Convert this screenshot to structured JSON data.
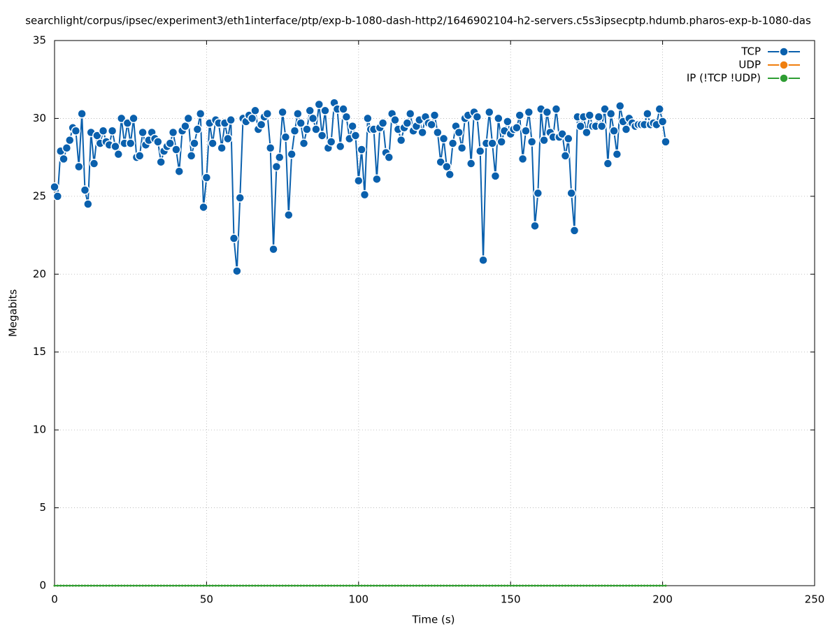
{
  "chart_data": {
    "type": "line",
    "title": "searchlight/corpus/ipsec/experiment3/eth1interface/ptp/exp-b-1080-dash-http2/1646902104-h2-servers.c5s3ipsecptp.hdumb.pharos-exp-b-1080-das",
    "x_label": "Time (s)",
    "y_label": "Megabits",
    "xlim": [
      0,
      250
    ],
    "xticks": [
      0,
      50,
      100,
      150,
      200,
      250
    ],
    "ylim": [
      0,
      35
    ],
    "yticks": [
      0,
      5,
      10,
      15,
      20,
      25,
      30,
      35
    ],
    "grid": true,
    "legend": "top-right",
    "x": [
      0,
      1,
      2,
      3,
      4,
      5,
      6,
      7,
      8,
      9,
      10,
      11,
      12,
      13,
      14,
      15,
      16,
      17,
      18,
      19,
      20,
      21,
      22,
      23,
      24,
      25,
      26,
      27,
      28,
      29,
      30,
      31,
      32,
      33,
      34,
      35,
      36,
      37,
      38,
      39,
      40,
      41,
      42,
      43,
      44,
      45,
      46,
      47,
      48,
      49,
      50,
      51,
      52,
      53,
      54,
      55,
      56,
      57,
      58,
      59,
      60,
      61,
      62,
      63,
      64,
      65,
      66,
      67,
      68,
      69,
      70,
      71,
      72,
      73,
      74,
      75,
      76,
      77,
      78,
      79,
      80,
      81,
      82,
      83,
      84,
      85,
      86,
      87,
      88,
      89,
      90,
      91,
      92,
      93,
      94,
      95,
      96,
      97,
      98,
      99,
      100,
      101,
      102,
      103,
      104,
      105,
      106,
      107,
      108,
      109,
      110,
      111,
      112,
      113,
      114,
      115,
      116,
      117,
      118,
      119,
      120,
      121,
      122,
      123,
      124,
      125,
      126,
      127,
      128,
      129,
      130,
      131,
      132,
      133,
      134,
      135,
      136,
      137,
      138,
      139,
      140,
      141,
      142,
      143,
      144,
      145,
      146,
      147,
      148,
      149,
      150,
      151,
      152,
      153,
      154,
      155,
      156,
      157,
      158,
      159,
      160,
      161,
      162,
      163,
      164,
      165,
      166,
      167,
      168,
      169,
      170,
      171,
      172,
      173,
      174,
      175,
      176,
      177,
      178,
      179,
      180,
      181,
      182,
      183,
      184,
      185,
      186,
      187,
      188,
      189,
      190,
      191,
      192,
      193,
      194,
      195,
      196,
      197,
      198,
      199,
      200,
      201
    ],
    "series": [
      {
        "name": "TCP",
        "color": "#0a60ad",
        "values": [
          25.6,
          25.0,
          27.9,
          27.4,
          28.1,
          28.6,
          29.4,
          29.2,
          26.9,
          30.3,
          25.4,
          24.5,
          29.1,
          27.1,
          28.9,
          28.4,
          29.2,
          28.5,
          28.3,
          29.2,
          28.2,
          27.7,
          30.0,
          28.4,
          29.7,
          28.4,
          30.0,
          27.5,
          27.6,
          29.1,
          28.3,
          28.6,
          29.1,
          28.7,
          28.5,
          27.2,
          27.9,
          28.2,
          28.4,
          29.1,
          28.0,
          26.6,
          29.2,
          29.5,
          30.0,
          27.6,
          28.4,
          29.3,
          30.3,
          24.3,
          26.2,
          29.7,
          28.4,
          29.9,
          29.7,
          28.1,
          29.7,
          28.7,
          29.9,
          22.3,
          20.2,
          24.9,
          30.0,
          29.8,
          30.2,
          30.0,
          30.5,
          29.3,
          29.6,
          30.1,
          30.3,
          28.1,
          21.6,
          26.9,
          27.5,
          30.4,
          28.8,
          23.8,
          27.7,
          29.2,
          30.3,
          29.7,
          28.4,
          29.3,
          30.5,
          30.0,
          29.3,
          30.9,
          28.9,
          30.5,
          28.1,
          28.5,
          31.0,
          30.6,
          28.2,
          30.6,
          30.1,
          28.7,
          29.5,
          28.9,
          26.0,
          28.0,
          25.1,
          30.0,
          29.3,
          29.3,
          26.1,
          29.4,
          29.7,
          27.8,
          27.5,
          30.3,
          29.9,
          29.3,
          28.6,
          29.4,
          29.7,
          30.3,
          29.2,
          29.5,
          29.9,
          29.1,
          30.1,
          29.7,
          29.6,
          30.2,
          29.1,
          27.2,
          28.7,
          26.9,
          26.4,
          28.4,
          29.5,
          29.1,
          28.1,
          30.0,
          30.2,
          27.1,
          30.4,
          30.1,
          27.9,
          20.9,
          28.4,
          30.4,
          28.4,
          26.3,
          30.0,
          28.5,
          29.2,
          29.8,
          29.0,
          29.3,
          29.4,
          30.2,
          27.4,
          29.2,
          30.4,
          28.5,
          23.1,
          25.2,
          30.6,
          28.6,
          30.4,
          29.1,
          28.8,
          30.6,
          28.8,
          29.0,
          27.6,
          28.7,
          25.2,
          22.8,
          30.1,
          29.5,
          30.1,
          29.1,
          30.2,
          29.5,
          29.5,
          30.1,
          29.5,
          30.6,
          27.1,
          30.3,
          29.2,
          27.7,
          30.8,
          29.8,
          29.3,
          30.0,
          29.7,
          29.5,
          29.6,
          29.6,
          29.6,
          30.3,
          29.6,
          29.7,
          29.6,
          30.6,
          29.8,
          28.5
        ]
      },
      {
        "name": "UDP",
        "color": "#f07f0e",
        "values": [
          0,
          0,
          0,
          0,
          0,
          0,
          0,
          0,
          0,
          0,
          0,
          0,
          0,
          0,
          0,
          0,
          0,
          0,
          0,
          0,
          0,
          0,
          0,
          0,
          0,
          0,
          0,
          0,
          0,
          0,
          0,
          0,
          0,
          0,
          0,
          0,
          0,
          0,
          0,
          0,
          0,
          0,
          0,
          0,
          0,
          0,
          0,
          0,
          0,
          0,
          0,
          0,
          0,
          0,
          0,
          0,
          0,
          0,
          0,
          0,
          0,
          0,
          0,
          0,
          0,
          0,
          0,
          0,
          0,
          0,
          0,
          0,
          0,
          0,
          0,
          0,
          0,
          0,
          0,
          0,
          0,
          0,
          0,
          0,
          0,
          0,
          0,
          0,
          0,
          0,
          0,
          0,
          0,
          0,
          0,
          0,
          0,
          0,
          0,
          0,
          0,
          0,
          0,
          0,
          0,
          0,
          0,
          0,
          0,
          0,
          0,
          0,
          0,
          0,
          0,
          0,
          0,
          0,
          0,
          0,
          0,
          0,
          0,
          0,
          0,
          0,
          0,
          0,
          0,
          0,
          0,
          0,
          0,
          0,
          0,
          0,
          0,
          0,
          0,
          0,
          0,
          0,
          0,
          0,
          0,
          0,
          0,
          0,
          0,
          0,
          0,
          0,
          0,
          0,
          0,
          0,
          0,
          0,
          0,
          0,
          0,
          0,
          0,
          0,
          0,
          0,
          0,
          0,
          0,
          0,
          0,
          0,
          0,
          0,
          0,
          0,
          0,
          0,
          0,
          0,
          0,
          0,
          0,
          0,
          0,
          0,
          0,
          0,
          0,
          0,
          0,
          0,
          0,
          0,
          0,
          0,
          0,
          0,
          0,
          0,
          0,
          0
        ]
      },
      {
        "name": "IP (!TCP  !UDP)",
        "color": "#2e9d33",
        "values": [
          0,
          0,
          0,
          0,
          0,
          0,
          0,
          0,
          0,
          0,
          0,
          0,
          0,
          0,
          0,
          0,
          0,
          0,
          0,
          0,
          0,
          0,
          0,
          0,
          0,
          0,
          0,
          0,
          0,
          0,
          0,
          0,
          0,
          0,
          0,
          0,
          0,
          0,
          0,
          0,
          0,
          0,
          0,
          0,
          0,
          0,
          0,
          0,
          0,
          0,
          0,
          0,
          0,
          0,
          0,
          0,
          0,
          0,
          0,
          0,
          0,
          0,
          0,
          0,
          0,
          0,
          0,
          0,
          0,
          0,
          0,
          0,
          0,
          0,
          0,
          0,
          0,
          0,
          0,
          0,
          0,
          0,
          0,
          0,
          0,
          0,
          0,
          0,
          0,
          0,
          0,
          0,
          0,
          0,
          0,
          0,
          0,
          0,
          0,
          0,
          0,
          0,
          0,
          0,
          0,
          0,
          0,
          0,
          0,
          0,
          0,
          0,
          0,
          0,
          0,
          0,
          0,
          0,
          0,
          0,
          0,
          0,
          0,
          0,
          0,
          0,
          0,
          0,
          0,
          0,
          0,
          0,
          0,
          0,
          0,
          0,
          0,
          0,
          0,
          0,
          0,
          0,
          0,
          0,
          0,
          0,
          0,
          0,
          0,
          0,
          0,
          0,
          0,
          0,
          0,
          0,
          0,
          0,
          0,
          0,
          0,
          0,
          0,
          0,
          0,
          0,
          0,
          0,
          0,
          0,
          0,
          0,
          0,
          0,
          0,
          0,
          0,
          0,
          0,
          0,
          0,
          0,
          0,
          0,
          0,
          0,
          0,
          0,
          0,
          0,
          0,
          0,
          0,
          0,
          0,
          0,
          0,
          0,
          0,
          0,
          0,
          0
        ]
      }
    ]
  }
}
